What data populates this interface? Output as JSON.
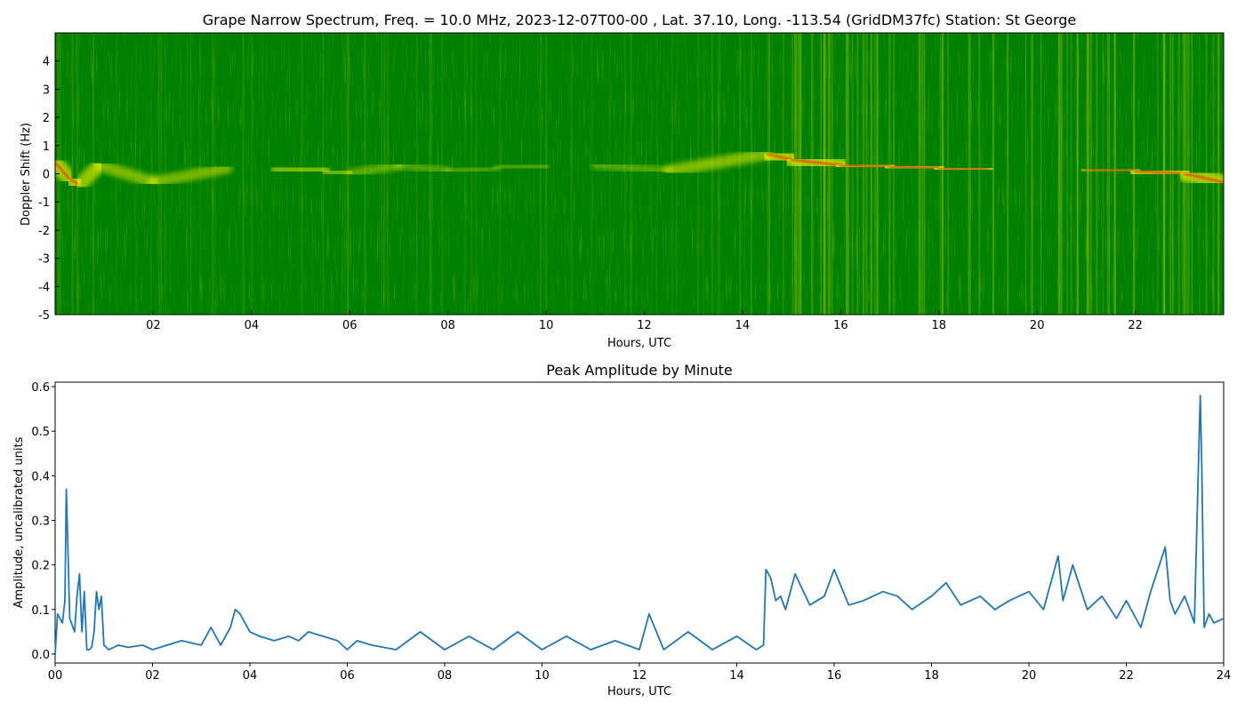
{
  "chart_data": [
    {
      "type": "heatmap",
      "title": "Grape Narrow Spectrum, Freq. = 10.0 MHz, 2023-12-07T00-00 , Lat.  37.10, Long. -113.54 (GridDM37fc) Station: St George",
      "xlabel": "Hours, UTC",
      "ylabel": "Doppler Shift (Hz)",
      "xlim": [
        0,
        23.8
      ],
      "ylim": [
        -5,
        5
      ],
      "x_ticks": [
        2,
        4,
        6,
        8,
        10,
        12,
        14,
        16,
        18,
        20,
        22
      ],
      "x_tick_labels": [
        "02",
        "04",
        "06",
        "08",
        "10",
        "12",
        "14",
        "16",
        "18",
        "20",
        "22"
      ],
      "y_ticks": [
        -5,
        -4,
        -3,
        -2,
        -1,
        0,
        1,
        2,
        3,
        4
      ],
      "y_tick_labels": [
        "-5",
        "-4",
        "-3",
        "-2",
        "-1",
        "0",
        "1",
        "2",
        "3",
        "4"
      ],
      "colors": {
        "background": "#008000",
        "mid": "#f5f500",
        "peak": "#ff2000"
      },
      "doppler_trace": {
        "hours": [
          0.0,
          0.3,
          0.5,
          0.9,
          2.0,
          3.5,
          4.5,
          5.5,
          6.0,
          7.0,
          8.0,
          9.0,
          10.0,
          11.0,
          12.5,
          14.5,
          15.0,
          16.0,
          17.0,
          18.0,
          19.0,
          20.0,
          21.0,
          22.0,
          23.0,
          23.8
        ],
        "shift_hz": [
          0.4,
          -0.2,
          -0.4,
          0.3,
          -0.3,
          0.2,
          0.2,
          0.1,
          0.0,
          0.3,
          0.1,
          0.2,
          0.3,
          0.3,
          0.1,
          0.7,
          0.5,
          0.3,
          0.25,
          0.2,
          0.15,
          0.15,
          0.15,
          0.1,
          0.0,
          -0.3
        ],
        "strength": [
          0.8,
          0.8,
          0.8,
          0.6,
          0.4,
          0.5,
          0.55,
          0.5,
          0.3,
          0.25,
          0.15,
          0.15,
          0.25,
          0.3,
          0.15,
          0.9,
          0.85,
          0.85,
          0.9,
          0.9,
          0.9,
          0.9,
          0.85,
          0.85,
          0.85,
          0.8
        ]
      }
    },
    {
      "type": "line",
      "title": "Peak Amplitude by Minute",
      "xlabel": "Hours, UTC",
      "ylabel": "Amplitude, uncalibrated units",
      "xlim": [
        0,
        24
      ],
      "ylim": [
        -0.02,
        0.61
      ],
      "x_ticks": [
        0,
        2,
        4,
        6,
        8,
        10,
        12,
        14,
        16,
        18,
        20,
        22,
        24
      ],
      "x_tick_labels": [
        "00",
        "02",
        "04",
        "06",
        "08",
        "10",
        "12",
        "14",
        "16",
        "18",
        "20",
        "22",
        "24"
      ],
      "y_ticks": [
        0.0,
        0.1,
        0.2,
        0.3,
        0.4,
        0.5,
        0.6
      ],
      "y_tick_labels": [
        "0.0",
        "0.1",
        "0.2",
        "0.3",
        "0.4",
        "0.5",
        "0.6"
      ],
      "line_color": "#1f77b4",
      "series": [
        {
          "x": [
            0.0,
            0.05,
            0.1,
            0.15,
            0.2,
            0.23,
            0.26,
            0.3,
            0.4,
            0.45,
            0.5,
            0.55,
            0.6,
            0.65,
            0.7,
            0.75,
            0.8,
            0.85,
            0.9,
            0.95,
            1.0,
            1.1,
            1.3,
            1.5,
            1.8,
            2.0,
            2.3,
            2.6,
            3.0,
            3.2,
            3.4,
            3.6,
            3.7,
            3.8,
            4.0,
            4.2,
            4.5,
            4.8,
            5.0,
            5.2,
            5.5,
            5.8,
            6.0,
            6.2,
            6.5,
            7.0,
            7.5,
            8.0,
            8.5,
            9.0,
            9.5,
            10.0,
            10.5,
            11.0,
            11.5,
            12.0,
            12.2,
            12.5,
            13.0,
            13.5,
            14.0,
            14.4,
            14.55,
            14.6,
            14.7,
            14.8,
            14.9,
            15.0,
            15.2,
            15.5,
            15.8,
            16.0,
            16.3,
            16.6,
            17.0,
            17.3,
            17.6,
            18.0,
            18.3,
            18.6,
            19.0,
            19.3,
            19.6,
            20.0,
            20.3,
            20.6,
            20.7,
            20.9,
            21.2,
            21.5,
            21.8,
            22.0,
            22.3,
            22.5,
            22.8,
            22.9,
            23.0,
            23.2,
            23.4,
            23.5,
            23.52,
            23.55,
            23.6,
            23.7,
            23.8,
            24.0
          ],
          "y": [
            0.0,
            0.09,
            0.08,
            0.07,
            0.12,
            0.37,
            0.25,
            0.08,
            0.05,
            0.13,
            0.18,
            0.05,
            0.14,
            0.01,
            0.01,
            0.015,
            0.05,
            0.14,
            0.1,
            0.13,
            0.02,
            0.01,
            0.02,
            0.015,
            0.02,
            0.01,
            0.02,
            0.03,
            0.02,
            0.06,
            0.02,
            0.06,
            0.1,
            0.09,
            0.05,
            0.04,
            0.03,
            0.04,
            0.03,
            0.05,
            0.04,
            0.03,
            0.01,
            0.03,
            0.02,
            0.01,
            0.05,
            0.01,
            0.04,
            0.01,
            0.05,
            0.01,
            0.04,
            0.01,
            0.03,
            0.01,
            0.09,
            0.01,
            0.05,
            0.01,
            0.04,
            0.01,
            0.02,
            0.19,
            0.17,
            0.12,
            0.13,
            0.1,
            0.18,
            0.11,
            0.13,
            0.19,
            0.11,
            0.12,
            0.14,
            0.13,
            0.1,
            0.13,
            0.16,
            0.11,
            0.13,
            0.1,
            0.12,
            0.14,
            0.1,
            0.22,
            0.12,
            0.2,
            0.1,
            0.13,
            0.08,
            0.12,
            0.06,
            0.14,
            0.24,
            0.12,
            0.09,
            0.13,
            0.07,
            0.5,
            0.58,
            0.42,
            0.06,
            0.09,
            0.07,
            0.08
          ]
        }
      ]
    }
  ]
}
